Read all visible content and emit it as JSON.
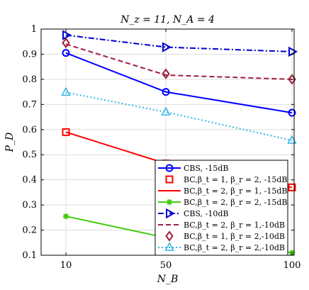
{
  "chart_data": {
    "type": "line",
    "title": "N_z = 11, N_A = 4",
    "xlabel": "N_B",
    "ylabel": "P_D",
    "x_categories": [
      "10",
      "50",
      "100"
    ],
    "ylim": [
      0.1,
      1.0
    ],
    "yticks": [
      "0.1",
      "0.2",
      "0.3",
      "0.4",
      "0.5",
      "0.6",
      "0.7",
      "0.8",
      "0.9",
      "1"
    ],
    "grid": true,
    "legend_position": "bottom-right",
    "series": [
      {
        "name": "CBS, -15dB",
        "values": [
          0.905,
          0.75,
          0.667
        ],
        "color": "#0000ff",
        "dash": "solid",
        "marker": "circle",
        "marker_fill": "none"
      },
      {
        "name": "BC,β_t = 1, β_r = 2, -15dB",
        "values": [
          0.59,
          0.465,
          0.37
        ],
        "color": "#ff0000",
        "dash": "none",
        "marker": "square",
        "marker_fill": "none"
      },
      {
        "name": "BC,β_t = 2, β_r = 1, -15dB",
        "values": [
          0.59,
          0.465,
          0.37
        ],
        "color": "#ff0000",
        "dash": "solid",
        "marker": "none",
        "marker_fill": "none"
      },
      {
        "name": "BC,β_t = 2, β_r = 2, -15dB",
        "values": [
          0.255,
          0.17,
          0.11
        ],
        "color": "#44cc11",
        "dash": "solid",
        "marker": "asterisk",
        "marker_fill": "none"
      },
      {
        "name": "CBS, -10dB",
        "values": [
          0.976,
          0.928,
          0.91
        ],
        "color": "#0000cc",
        "dash": "dashdot",
        "marker": "triangle-right",
        "marker_fill": "none"
      },
      {
        "name": "BC,β_t = 2, β_r = 1,-10dB",
        "values": [
          0.94,
          0.817,
          0.8
        ],
        "color": "#a0203c",
        "dash": "dashed",
        "marker": "none",
        "marker_fill": "none"
      },
      {
        "name": "BC,β_t = 1, β_r = 2,-10dB",
        "values": [
          0.945,
          0.822,
          0.8
        ],
        "color": "#a0203c",
        "dash": "none",
        "marker": "diamond",
        "marker_fill": "none"
      },
      {
        "name": "BC,β_t = 2, β_r = 2,-10dB",
        "values": [
          0.748,
          0.67,
          0.557
        ],
        "color": "#33b5e5",
        "dash": "dotted",
        "marker": "triangle-up",
        "marker_fill": "none"
      }
    ]
  }
}
